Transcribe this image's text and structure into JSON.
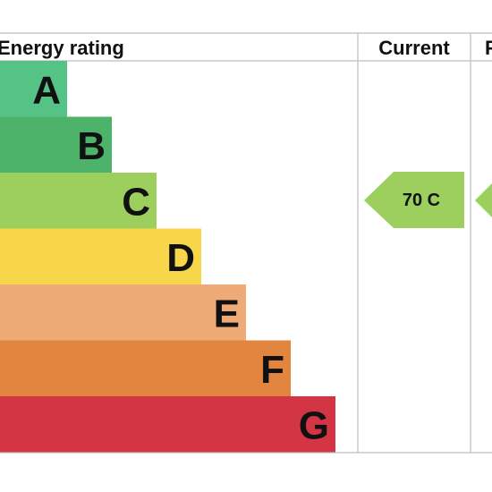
{
  "chart_data": {
    "type": "bar",
    "title": "",
    "columns": {
      "rating": "Energy rating",
      "current": "Current",
      "potential": "P"
    },
    "categories": [
      "A",
      "B",
      "C",
      "D",
      "E",
      "F",
      "G"
    ],
    "band_colors": [
      "#55c386",
      "#4db26a",
      "#9ccf5d",
      "#f7d649",
      "#eeab77",
      "#e1853f",
      "#d43545"
    ],
    "current": {
      "score": 70,
      "band": "C",
      "label": "70  C",
      "color": "#9ccf5d"
    },
    "potential": {
      "band": "C",
      "color": "#9ccf5d"
    }
  }
}
